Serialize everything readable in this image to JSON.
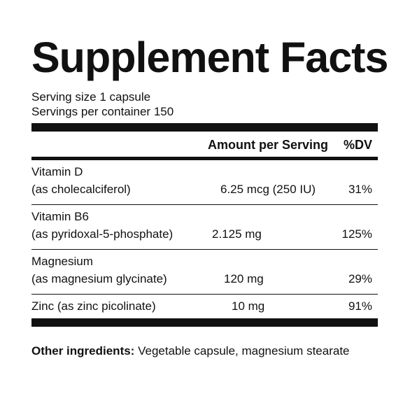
{
  "title": "Supplement Facts",
  "serving_size": "Serving size 1 capsule",
  "servings_per_container": "Servings per container 150",
  "header": {
    "amount": "Amount per Serving",
    "dv": "%DV"
  },
  "nutrients": [
    {
      "name": "Vitamin D",
      "source": "(as cholecalciferol)",
      "amount": "6.25 mcg (250 IU)",
      "dv": "31%"
    },
    {
      "name": "Vitamin B6",
      "source": "(as pyridoxal-5-phosphate)",
      "amount": "2.125 mg",
      "dv": "125%"
    },
    {
      "name": "Magnesium",
      "source": "(as magnesium glycinate)",
      "amount": "120 mg",
      "dv": "29%"
    },
    {
      "name": "Zinc (as zinc picolinate)",
      "amount": "10 mg",
      "dv": "91%"
    }
  ],
  "other_ingredients": {
    "label": "Other ingredients:",
    "text": " Vegetable capsule, magnesium stearate"
  }
}
